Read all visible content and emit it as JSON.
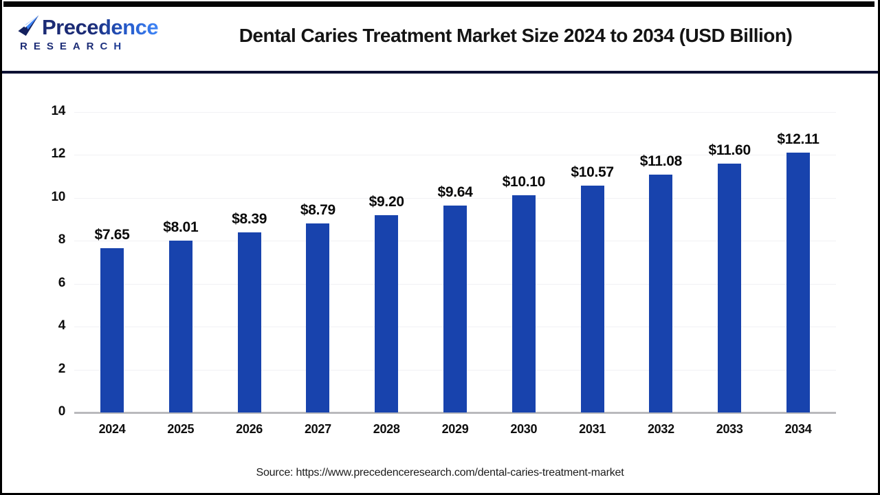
{
  "header": {
    "logo": {
      "name": "Precedence",
      "subtitle": "RESEARCH"
    },
    "title": "Dental Caries Treatment Market Size 2024 to 2034 (USD Billion)"
  },
  "chart_data": {
    "type": "bar",
    "title": "Dental Caries Treatment Market Size 2024 to 2034 (USD Billion)",
    "unit": "USD Billion",
    "categories": [
      "2024",
      "2025",
      "2026",
      "2027",
      "2028",
      "2029",
      "2030",
      "2031",
      "2032",
      "2033",
      "2034"
    ],
    "values": [
      7.65,
      8.01,
      8.39,
      8.79,
      9.2,
      9.64,
      10.1,
      10.57,
      11.08,
      11.6,
      12.11
    ],
    "value_labels": [
      "$7.65",
      "$8.01",
      "$8.39",
      "$8.79",
      "$9.20",
      "$9.64",
      "$10.10",
      "$10.57",
      "$11.08",
      "$11.60",
      "$12.11"
    ],
    "xlabel": "",
    "ylabel": "",
    "ylim": [
      0,
      14
    ],
    "yticks": [
      0,
      2,
      4,
      6,
      8,
      10,
      12,
      14
    ],
    "grid": true,
    "legend": false,
    "bar_color": "#1843ad"
  },
  "footer": {
    "source": "Source: https://www.precedenceresearch.com/dental-caries-treatment-market"
  },
  "colors": {
    "bar": "#1843ad",
    "divider": "#0d1133",
    "frame": "#000000",
    "grid_line": "#f1f1f4",
    "axis_line": "#b9b9bc",
    "logo_dark": "#1b2b75",
    "logo_light": "#3f86f8"
  }
}
